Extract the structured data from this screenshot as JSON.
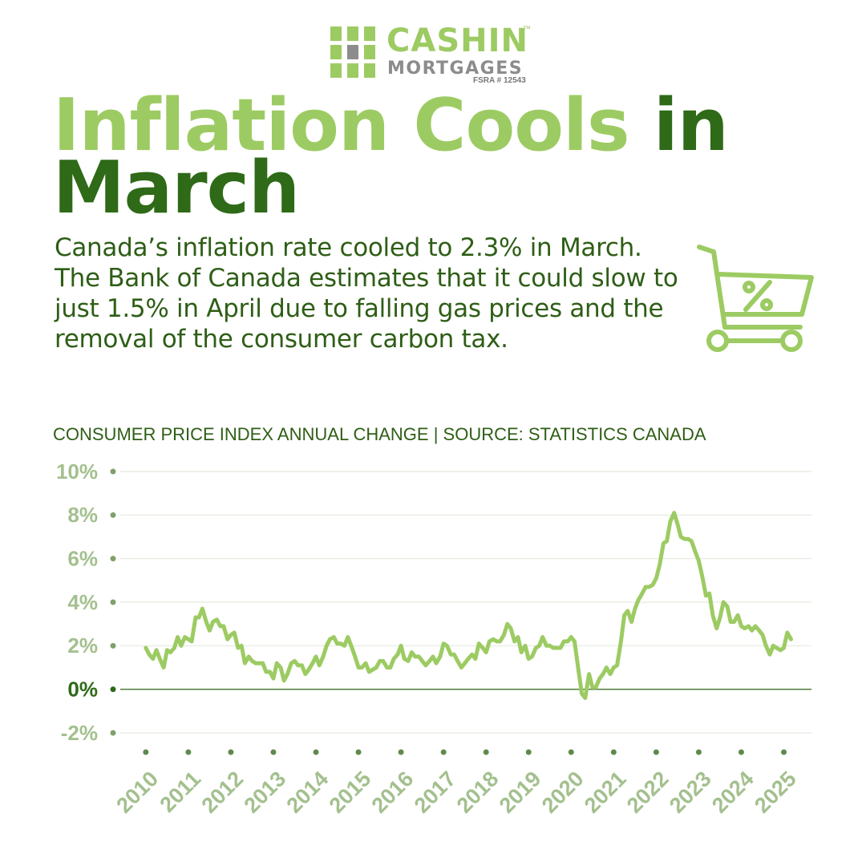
{
  "logo": {
    "name": "CASHIN",
    "tm": "™",
    "sub": "MORTGAGES",
    "license": "FSRA # 12543"
  },
  "title": {
    "light": "Inflation Cools",
    "dark": "in March"
  },
  "body": "Canada’s inflation rate cooled to 2.3% in March. The Bank of Canada estimates that it could slow to just 1.5% in April due to falling gas prices and the removal of the consumer carbon tax.",
  "chart_data": {
    "type": "line",
    "title": "CONSUMER PRICE INDEX ANNUAL CHANGE | SOURCE: STATISTICS CANADA",
    "color": "#9dcb63",
    "x": [
      2010,
      2010.08,
      2010.17,
      2010.25,
      2010.33,
      2010.42,
      2010.5,
      2010.58,
      2010.67,
      2010.75,
      2010.83,
      2010.92,
      2011,
      2011.08,
      2011.17,
      2011.25,
      2011.33,
      2011.42,
      2011.5,
      2011.58,
      2011.67,
      2011.75,
      2011.83,
      2011.92,
      2012,
      2012.08,
      2012.17,
      2012.25,
      2012.33,
      2012.42,
      2012.5,
      2012.58,
      2012.67,
      2012.75,
      2012.83,
      2012.92,
      2013,
      2013.08,
      2013.17,
      2013.25,
      2013.33,
      2013.42,
      2013.5,
      2013.58,
      2013.67,
      2013.75,
      2013.83,
      2013.92,
      2014,
      2014.08,
      2014.17,
      2014.25,
      2014.33,
      2014.42,
      2014.5,
      2014.58,
      2014.67,
      2014.75,
      2014.83,
      2014.92,
      2015,
      2015.08,
      2015.17,
      2015.25,
      2015.33,
      2015.42,
      2015.5,
      2015.58,
      2015.67,
      2015.75,
      2015.83,
      2015.92,
      2016,
      2016.08,
      2016.17,
      2016.25,
      2016.33,
      2016.42,
      2016.5,
      2016.58,
      2016.67,
      2016.75,
      2016.83,
      2016.92,
      2017,
      2017.08,
      2017.17,
      2017.25,
      2017.33,
      2017.42,
      2017.5,
      2017.58,
      2017.67,
      2017.75,
      2017.83,
      2017.92,
      2018,
      2018.08,
      2018.17,
      2018.25,
      2018.33,
      2018.42,
      2018.5,
      2018.58,
      2018.67,
      2018.75,
      2018.83,
      2018.92,
      2019,
      2019.08,
      2019.17,
      2019.25,
      2019.33,
      2019.42,
      2019.5,
      2019.58,
      2019.67,
      2019.75,
      2019.83,
      2019.92,
      2020,
      2020.08,
      2020.17,
      2020.25,
      2020.33,
      2020.42,
      2020.5,
      2020.58,
      2020.67,
      2020.75,
      2020.83,
      2020.92,
      2021,
      2021.08,
      2021.17,
      2021.25,
      2021.33,
      2021.42,
      2021.5,
      2021.58,
      2021.67,
      2021.75,
      2021.83,
      2021.92,
      2022,
      2022.08,
      2022.17,
      2022.25,
      2022.33,
      2022.42,
      2022.5,
      2022.58,
      2022.67,
      2022.75,
      2022.83,
      2022.92,
      2023,
      2023.08,
      2023.17,
      2023.25,
      2023.33,
      2023.42,
      2023.5,
      2023.58,
      2023.67,
      2023.75,
      2023.83,
      2023.92,
      2024,
      2024.08,
      2024.17,
      2024.25,
      2024.33,
      2024.42,
      2024.5,
      2024.58,
      2024.67,
      2024.75,
      2024.83,
      2024.92,
      2025,
      2025.08,
      2025.17
    ],
    "values": [
      1.9,
      1.6,
      1.4,
      1.8,
      1.4,
      1.0,
      1.8,
      1.7,
      1.9,
      2.4,
      2.0,
      2.4,
      2.3,
      2.2,
      3.3,
      3.3,
      3.7,
      3.1,
      2.7,
      3.1,
      3.2,
      2.9,
      2.9,
      2.3,
      2.5,
      2.6,
      1.9,
      2.0,
      1.2,
      1.5,
      1.3,
      1.2,
      1.2,
      1.2,
      0.8,
      0.8,
      0.5,
      1.2,
      1.0,
      0.4,
      0.7,
      1.2,
      1.3,
      1.1,
      1.1,
      0.7,
      0.9,
      1.2,
      1.5,
      1.1,
      1.5,
      2.0,
      2.3,
      2.4,
      2.1,
      2.1,
      2.0,
      2.4,
      2.0,
      1.5,
      1.0,
      1.0,
      1.2,
      0.8,
      0.9,
      1.0,
      1.3,
      1.3,
      1.0,
      1.0,
      1.4,
      1.6,
      2.0,
      1.4,
      1.3,
      1.7,
      1.5,
      1.5,
      1.3,
      1.1,
      1.3,
      1.5,
      1.2,
      1.5,
      2.1,
      2.0,
      1.6,
      1.6,
      1.3,
      1.0,
      1.2,
      1.4,
      1.6,
      1.4,
      2.1,
      1.9,
      1.7,
      2.2,
      2.3,
      2.2,
      2.2,
      2.5,
      3.0,
      2.8,
      2.2,
      2.4,
      1.7,
      2.0,
      1.4,
      1.5,
      1.9,
      2.0,
      2.4,
      2.0,
      2.0,
      1.9,
      1.9,
      1.9,
      2.2,
      2.2,
      2.4,
      2.2,
      0.9,
      -0.2,
      -0.4,
      0.7,
      0.1,
      0.1,
      0.5,
      0.7,
      1.0,
      0.7,
      1.0,
      1.1,
      2.2,
      3.4,
      3.6,
      3.1,
      3.7,
      4.1,
      4.4,
      4.7,
      4.7,
      4.8,
      5.1,
      5.7,
      6.7,
      6.8,
      7.7,
      8.1,
      7.6,
      7.0,
      6.9,
      6.9,
      6.8,
      6.3,
      5.9,
      5.2,
      4.3,
      4.4,
      3.4,
      2.8,
      3.3,
      4.0,
      3.8,
      3.1,
      3.1,
      3.4,
      2.9,
      2.8,
      2.9,
      2.7,
      2.9,
      2.7,
      2.5,
      2.0,
      1.6,
      2.0,
      1.9,
      1.8,
      1.9,
      2.6,
      2.3
    ],
    "xlim": [
      2009.4,
      2025.65
    ],
    "xticks": [
      2010,
      2011,
      2012,
      2013,
      2014,
      2015,
      2016,
      2017,
      2018,
      2019,
      2020,
      2021,
      2022,
      2023,
      2024,
      2025
    ],
    "ylim": [
      -2,
      10
    ],
    "yticks": [
      {
        "value": -2,
        "label": "-2%"
      },
      {
        "value": 0,
        "label": "0%"
      },
      {
        "value": 2,
        "label": "2%"
      },
      {
        "value": 4,
        "label": "4%"
      },
      {
        "value": 6,
        "label": "6%"
      },
      {
        "value": 8,
        "label": "8%"
      },
      {
        "value": 10,
        "label": "10%"
      }
    ],
    "grid": true
  }
}
